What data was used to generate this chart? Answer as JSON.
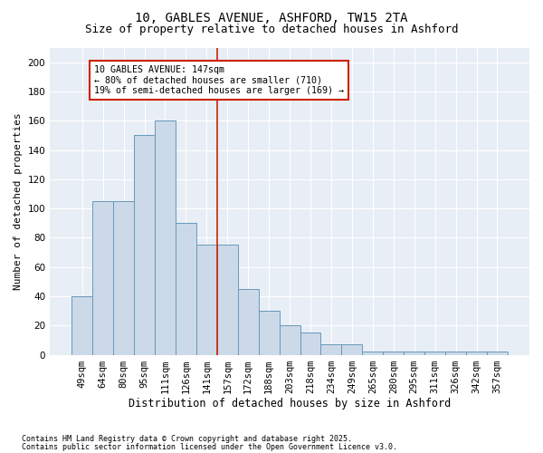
{
  "title_line1": "10, GABLES AVENUE, ASHFORD, TW15 2TA",
  "title_line2": "Size of property relative to detached houses in Ashford",
  "xlabel": "Distribution of detached houses by size in Ashford",
  "ylabel": "Number of detached properties",
  "categories": [
    "49sqm",
    "64sqm",
    "80sqm",
    "95sqm",
    "111sqm",
    "126sqm",
    "141sqm",
    "157sqm",
    "172sqm",
    "188sqm",
    "203sqm",
    "218sqm",
    "234sqm",
    "249sqm",
    "265sqm",
    "280sqm",
    "295sqm",
    "311sqm",
    "326sqm",
    "342sqm",
    "357sqm"
  ],
  "values": [
    40,
    105,
    105,
    150,
    160,
    90,
    75,
    75,
    45,
    30,
    20,
    15,
    7,
    7,
    2,
    2,
    2,
    2,
    2,
    2,
    2
  ],
  "bar_color": "#ccd9e8",
  "bar_edge_color": "#6699bb",
  "vline_x_index": 6.5,
  "vline_color": "#cc2200",
  "annotation_text": "10 GABLES AVENUE: 147sqm\n← 80% of detached houses are smaller (710)\n19% of semi-detached houses are larger (169) →",
  "annotation_box_color": "#cc2200",
  "ylim": [
    0,
    210
  ],
  "yticks": [
    0,
    20,
    40,
    60,
    80,
    100,
    120,
    140,
    160,
    180,
    200
  ],
  "bg_color": "#e8eef5",
  "footer_line1": "Contains HM Land Registry data © Crown copyright and database right 2025.",
  "footer_line2": "Contains public sector information licensed under the Open Government Licence v3.0.",
  "title_fontsize": 10,
  "subtitle_fontsize": 9,
  "xlabel_fontsize": 8.5,
  "ylabel_fontsize": 8,
  "tick_fontsize": 7.5,
  "annot_fontsize": 7.2,
  "footer_fontsize": 6.0
}
